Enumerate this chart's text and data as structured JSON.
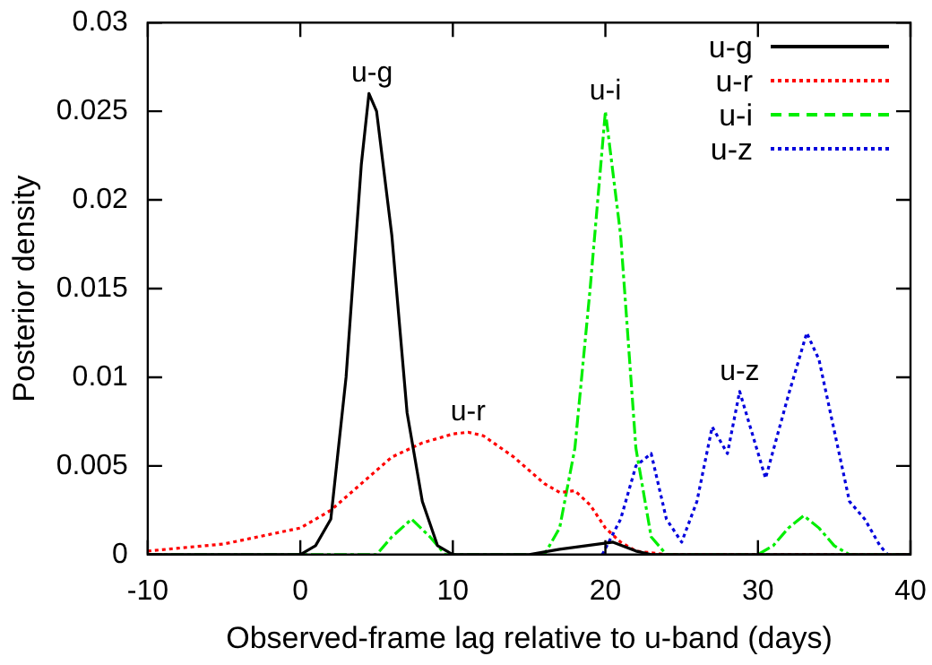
{
  "chart_data": {
    "type": "line",
    "xlabel": "Observed-frame lag relative to u-band (days)",
    "ylabel": "Posterior density",
    "xlim": [
      -10,
      40
    ],
    "xticks": [
      -10,
      0,
      10,
      20,
      30,
      40
    ],
    "ylim": [
      0,
      0.03
    ],
    "yticks": [
      0,
      0.005,
      0.01,
      0.015,
      0.02,
      0.025,
      0.03
    ],
    "grid": false,
    "legend": "top right",
    "marker": "none",
    "series": [
      {
        "name": "u-g",
        "color": "#000000",
        "line_style": "solid",
        "x": [
          -10,
          0,
          1,
          2,
          3,
          4,
          4.5,
          5,
          6,
          7,
          8,
          9,
          10,
          15,
          17,
          20.5,
          22,
          23,
          40
        ],
        "values": [
          0,
          0,
          0.0005,
          0.002,
          0.01,
          0.022,
          0.026,
          0.025,
          0.018,
          0.008,
          0.003,
          0.0005,
          0,
          0,
          0.0003,
          0.0007,
          0.0002,
          0,
          0
        ]
      },
      {
        "name": "u-r",
        "color": "#ff0000",
        "line_style": "dotted",
        "x": [
          -10,
          -5,
          0,
          2,
          4,
          6,
          8,
          10,
          11,
          12,
          14,
          16,
          17,
          18,
          19,
          20,
          21,
          22,
          24,
          40
        ],
        "values": [
          0.0002,
          0.0006,
          0.0015,
          0.0025,
          0.004,
          0.0055,
          0.0063,
          0.0068,
          0.0069,
          0.0067,
          0.0055,
          0.004,
          0.0035,
          0.0036,
          0.0028,
          0.0015,
          0.0007,
          0.0002,
          0,
          0
        ]
      },
      {
        "name": "u-i",
        "color": "#00ee00",
        "line_style": "dashdot",
        "x": [
          -10,
          5,
          6,
          7.3,
          8.5,
          9.5,
          16,
          17,
          18,
          19,
          20,
          21,
          22,
          23,
          24,
          30,
          31,
          32,
          33,
          34,
          35,
          36,
          40
        ],
        "values": [
          0,
          0,
          0.001,
          0.002,
          0.001,
          0,
          0,
          0.0015,
          0.006,
          0.015,
          0.025,
          0.018,
          0.006,
          0.001,
          0,
          0,
          0.0005,
          0.0015,
          0.0022,
          0.0015,
          0.0005,
          0,
          0
        ]
      },
      {
        "name": "u-z",
        "color": "#0000dd",
        "line_style": "dotted",
        "x": [
          19.8,
          21,
          22,
          23,
          24,
          25,
          26,
          27,
          28,
          28.8,
          30.5,
          32,
          33.2,
          34,
          35,
          36,
          37,
          38,
          38.5
        ],
        "values": [
          0,
          0.002,
          0.005,
          0.0057,
          0.002,
          0.0007,
          0.003,
          0.0072,
          0.0057,
          0.0092,
          0.0043,
          0.009,
          0.0125,
          0.011,
          0.007,
          0.003,
          0.002,
          0.0005,
          0
        ]
      }
    ],
    "annotations": [
      {
        "text": "u-g",
        "x": 4.7,
        "y": 0.026
      },
      {
        "text": "u-r",
        "x": 11,
        "y": 0.0069
      },
      {
        "text": "u-i",
        "x": 20,
        "y": 0.025
      },
      {
        "text": "u-z",
        "x": 28.8,
        "y": 0.0092
      }
    ]
  }
}
